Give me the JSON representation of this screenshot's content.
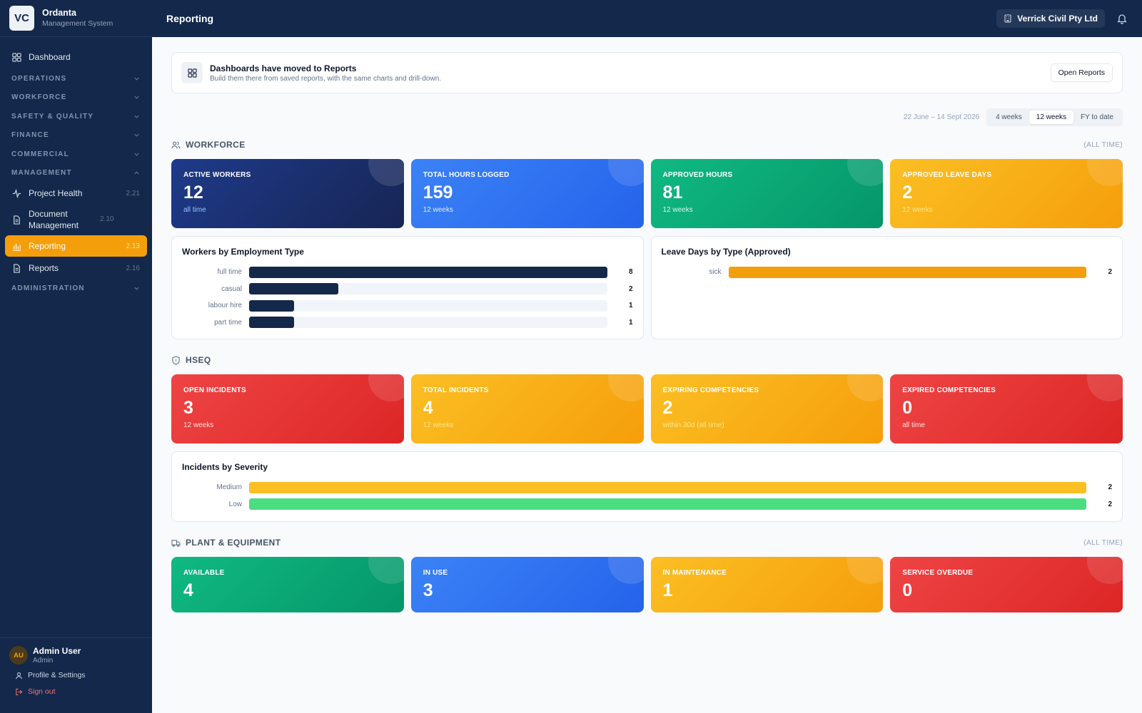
{
  "brand": {
    "initials": "VC",
    "name": "Ordanta",
    "subtitle": "Management System"
  },
  "header": {
    "title": "Reporting",
    "org": "Verrick Civil Pty Ltd"
  },
  "sidebar": {
    "dashboard": "Dashboard",
    "sections": {
      "operations": "OPERATIONS",
      "workforce": "WORKFORCE",
      "safety": "SAFETY & QUALITY",
      "finance": "FINANCE",
      "commercial": "COMMERCIAL",
      "management": "MANAGEMENT",
      "administration": "ADMINISTRATION"
    },
    "items": [
      {
        "label": "Project Health",
        "code": "2.21"
      },
      {
        "label": "Document Management",
        "code": "2.10"
      },
      {
        "label": "Reporting",
        "code": "2.13"
      },
      {
        "label": "Reports",
        "code": "2.16"
      }
    ],
    "user": {
      "initials": "AU",
      "name": "Admin User",
      "role": "Admin",
      "profile": "Profile & Settings",
      "signout": "Sign out"
    }
  },
  "banner": {
    "title": "Dashboards have moved to Reports",
    "subtitle": "Build them there from saved reports, with the same charts and drill-down.",
    "button": "Open Reports"
  },
  "range": {
    "label": "22 June – 14 Sept 2026",
    "options": [
      "4 weeks",
      "12 weeks",
      "FY to date"
    ],
    "selected": "12 weeks"
  },
  "workforce": {
    "title": "WORKFORCE",
    "note": "(ALL TIME)",
    "cards": [
      {
        "label": "ACTIVE WORKERS",
        "value": "12",
        "sub": "all time"
      },
      {
        "label": "TOTAL HOURS LOGGED",
        "value": "159",
        "sub": "12 weeks"
      },
      {
        "label": "APPROVED HOURS",
        "value": "81",
        "sub": "12 weeks"
      },
      {
        "label": "APPROVED LEAVE DAYS",
        "value": "2",
        "sub": "12 weeks"
      }
    ]
  },
  "hseq": {
    "title": "HSEQ",
    "cards": [
      {
        "label": "OPEN INCIDENTS",
        "value": "3",
        "sub": "12 weeks"
      },
      {
        "label": "TOTAL INCIDENTS",
        "value": "4",
        "sub": "12 weeks"
      },
      {
        "label": "EXPIRING COMPETENCIES",
        "value": "2",
        "sub": "within 30d (all time)"
      },
      {
        "label": "EXPIRED COMPETENCIES",
        "value": "0",
        "sub": "all time"
      }
    ]
  },
  "plant": {
    "title": "PLANT & EQUIPMENT",
    "note": "(ALL TIME)",
    "cards": [
      {
        "label": "AVAILABLE",
        "value": "4"
      },
      {
        "label": "IN USE",
        "value": "3"
      },
      {
        "label": "IN MAINTENANCE",
        "value": "1"
      },
      {
        "label": "SERVICE OVERDUE",
        "value": "0"
      }
    ]
  },
  "colors": {
    "navy": "#13284a",
    "amber": "#f59e0b",
    "yellow": "#fbbf24",
    "green": "#4ade80",
    "bar_navy": "#14284a"
  },
  "chart_data": [
    {
      "type": "bar",
      "title": "Workers by Employment Type",
      "categories": [
        "full time",
        "casual",
        "labour hire",
        "part time"
      ],
      "values": [
        8,
        2,
        1,
        1
      ],
      "xlim": [
        0,
        8
      ],
      "color": "#14284a"
    },
    {
      "type": "bar",
      "title": "Leave Days by Type (Approved)",
      "categories": [
        "sick"
      ],
      "values": [
        2
      ],
      "xlim": [
        0,
        2
      ],
      "color": "#f59e0b"
    },
    {
      "type": "bar",
      "title": "Incidents by Severity",
      "categories": [
        "Medium",
        "Low"
      ],
      "values": [
        2,
        2
      ],
      "xlim": [
        0,
        2
      ],
      "colors": [
        "#fbbf24",
        "#4ade80"
      ]
    }
  ]
}
